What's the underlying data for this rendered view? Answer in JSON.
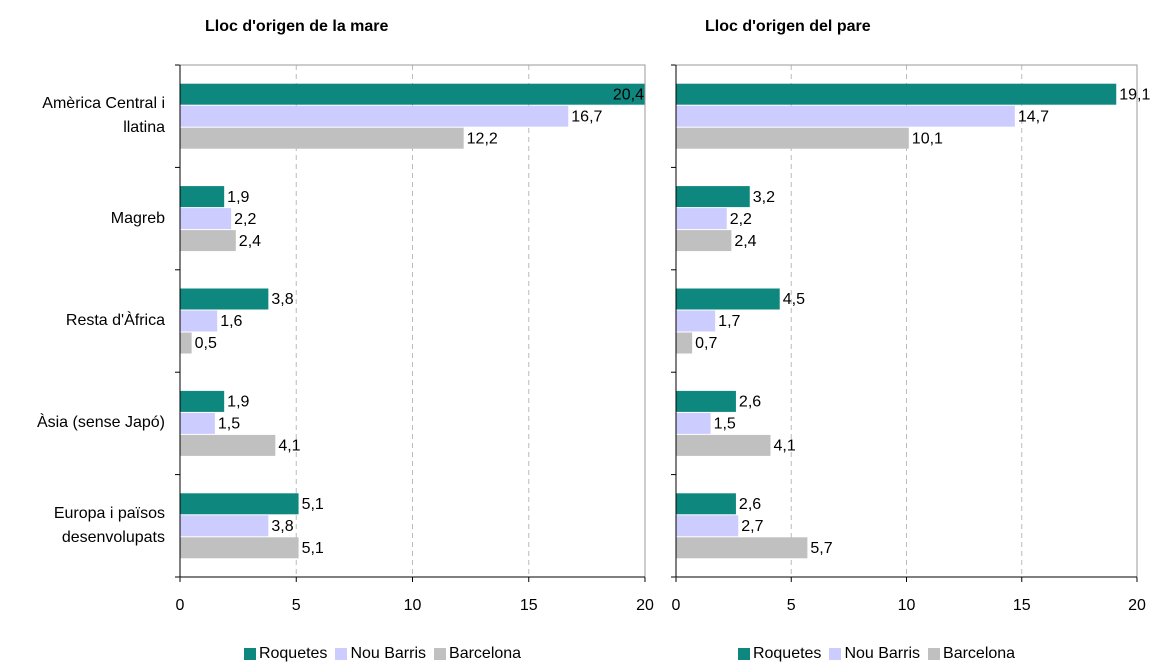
{
  "chart_data": [
    {
      "type": "hbar",
      "title": "Lloc d'origen de la  mare",
      "categories": [
        "Amèrica Central i llatina",
        "Magreb",
        "Resta d'Àfrica",
        "Àsia (sense Japó)",
        "Europa i països desenvolupats"
      ],
      "series": [
        {
          "name": "Roquetes",
          "color": "#0e877f",
          "values": [
            20.4,
            1.9,
            3.8,
            1.9,
            5.1
          ],
          "value_labels": [
            "20,4",
            "1,9",
            "3,8",
            "1,9",
            "5,1"
          ]
        },
        {
          "name": "Nou Barris",
          "color": "#ccccff",
          "values": [
            16.7,
            2.2,
            1.6,
            1.5,
            3.8
          ],
          "value_labels": [
            "16,7",
            "2,2",
            "1,6",
            "1,5",
            "3,8"
          ]
        },
        {
          "name": "Barcelona",
          "color": "#c0c0c0",
          "values": [
            12.2,
            2.4,
            0.5,
            4.1,
            5.1
          ],
          "value_labels": [
            "12,2",
            "2,4",
            "0,5",
            "4,1",
            "5,1"
          ]
        }
      ],
      "xlim": [
        0,
        20
      ],
      "xticks": [
        0,
        5,
        10,
        15,
        20
      ],
      "grid": true,
      "legend": "bottom"
    },
    {
      "type": "hbar",
      "title": "Lloc d'origen del pare",
      "categories": [
        null,
        null,
        null,
        null,
        null
      ],
      "series": [
        {
          "name": "Roquetes",
          "color": "#0e877f",
          "values": [
            19.1,
            3.2,
            4.5,
            2.6,
            2.6
          ],
          "value_labels": [
            "19,1",
            "3,2",
            "4,5",
            "2,6",
            "2,6"
          ]
        },
        {
          "name": "Nou Barris",
          "color": "#ccccff",
          "values": [
            14.7,
            2.2,
            1.7,
            1.5,
            2.7
          ],
          "value_labels": [
            "14,7",
            "2,2",
            "1,7",
            "1,5",
            "2,7"
          ]
        },
        {
          "name": "Barcelona",
          "color": "#c0c0c0",
          "values": [
            10.1,
            2.4,
            0.7,
            4.1,
            5.7
          ],
          "value_labels": [
            "10,1",
            "2,4",
            "0,7",
            "4,1",
            "5,7"
          ]
        }
      ],
      "xlim": [
        0,
        20
      ],
      "xticks": [
        0,
        5,
        10,
        15,
        20
      ],
      "grid": true,
      "legend": "bottom"
    }
  ]
}
